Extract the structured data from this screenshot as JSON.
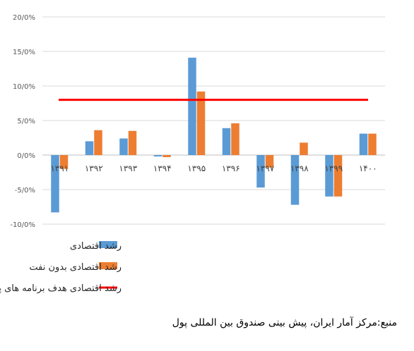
{
  "chart_data": {
    "type": "bar",
    "categories": [
      "۱۳۹۱",
      "۱۳۹۲",
      "۱۳۹۳",
      "۱۳۹۴",
      "۱۳۹۵",
      "۱۳۹۶",
      "۱۳۹۷",
      "۱۳۹۸",
      "۱۳۹۹",
      "۱۴۰۰"
    ],
    "series": [
      {
        "name": "رشد اقتصادی",
        "color": "#5B9BD5",
        "values": [
          -8.3,
          2.0,
          2.4,
          -0.2,
          14.1,
          3.9,
          -4.7,
          -7.2,
          -6.0,
          3.1
        ]
      },
      {
        "name": "رشد اقتصادی بدون نفت",
        "color": "#ED7D31",
        "values": [
          -2.0,
          3.6,
          3.5,
          -0.3,
          9.2,
          4.6,
          -1.8,
          1.8,
          -6.0,
          3.1
        ]
      }
    ],
    "reference_line": {
      "name": "رشد اقتصادی هدف برنامه های پنجم و ششم",
      "value": 8.0,
      "color": "#FF0000"
    },
    "ylim": [
      -10,
      20
    ],
    "yticks": [
      -10,
      -5,
      0,
      5,
      10,
      15,
      20
    ],
    "ytick_labels": [
      "-10/0%",
      "-5/0%",
      "0/0%",
      "5/0%",
      "10/0%",
      "15/0%",
      "20/0%"
    ],
    "grid": true,
    "legend_position": "bottom"
  },
  "source_note": "منبع:مرکز آمار ایران، پیش بینی صندوق بین المللی پول"
}
